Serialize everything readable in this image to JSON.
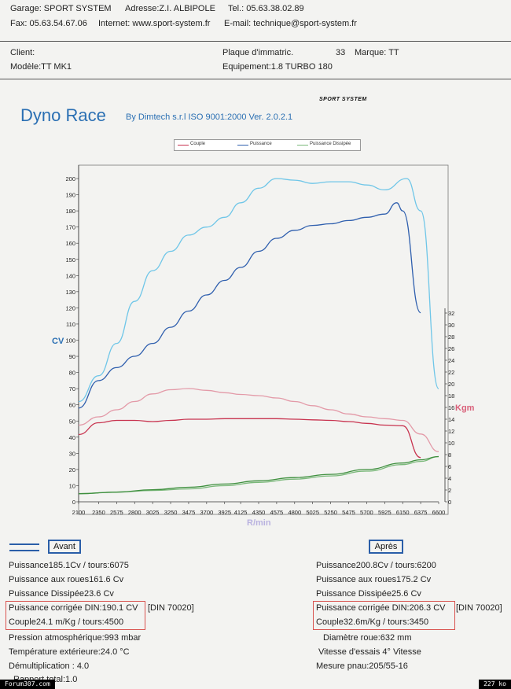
{
  "header": {
    "garage": "Garage: SPORT SYSTEM",
    "adresse": "Adresse:Z.I. ALBIPOLE",
    "tel": "Tel.: 05.63.38.02.89",
    "fax": "Fax: 05.63.54.67.06",
    "internet": "Internet: www.sport-system.fr",
    "email": "E-mail: technique@sport-system.fr",
    "client": "Client:",
    "plaque": "Plaque d'immatric.",
    "plaque_num": "33",
    "marque": "Marque: TT",
    "modele": "Modèle:TT MK1",
    "equipement": "Equipement:1.8 TURBO 180"
  },
  "report": {
    "title": "Dyno Race",
    "subtitle": "By Dimtech s.r.l  ISO 9001:2000  Ver. 2.0.2.1",
    "logo": "SPORT SYSTEM"
  },
  "chart_data": {
    "type": "line",
    "xlabel": "R/min",
    "ylabel_left": "CV",
    "ylabel_right": "Kgm",
    "x_ticks": [
      2100,
      2350,
      2575,
      2800,
      3025,
      3250,
      3475,
      3700,
      3925,
      4125,
      4350,
      4575,
      4800,
      5025,
      5250,
      5475,
      5700,
      5925,
      6150,
      6375,
      6600
    ],
    "y_left_ticks": [
      0,
      10,
      20,
      30,
      40,
      50,
      60,
      70,
      80,
      90,
      100,
      110,
      120,
      130,
      140,
      150,
      160,
      170,
      180,
      190,
      200
    ],
    "y_right_ticks": [
      0,
      2,
      4,
      6,
      8,
      10,
      12,
      14,
      16,
      18,
      20,
      22,
      24,
      26,
      28,
      30,
      32
    ],
    "xlim": [
      2100,
      6600
    ],
    "ylim_left": [
      0,
      200
    ],
    "ylim_right": [
      0,
      32
    ],
    "grid": false,
    "legend": [
      "Couple",
      "Puissance",
      "Puissance Dissipée"
    ],
    "series": [
      {
        "name": "Puissance",
        "axis": "left",
        "color": "#2f5fae",
        "x": [
          2100,
          2350,
          2575,
          2800,
          3025,
          3250,
          3475,
          3700,
          3925,
          4125,
          4350,
          4575,
          4800,
          5025,
          5250,
          5475,
          5700,
          5925,
          6075,
          6150,
          6375
        ],
        "y": [
          58,
          75,
          83,
          90,
          98,
          108,
          118,
          128,
          137,
          145,
          155,
          163,
          168,
          171,
          172,
          174,
          176,
          178,
          185,
          180,
          117
        ]
      },
      {
        "name": "Puissance",
        "axis": "left",
        "color": "#6fc6e8",
        "x": [
          2100,
          2350,
          2575,
          2800,
          3025,
          3250,
          3475,
          3700,
          3925,
          4125,
          4350,
          4575,
          4800,
          5025,
          5250,
          5475,
          5700,
          5925,
          6200,
          6375,
          6600
        ],
        "y": [
          62,
          78,
          98,
          124,
          143,
          155,
          165,
          170,
          176,
          185,
          194,
          200,
          199,
          197,
          198,
          198,
          196,
          193,
          200,
          180,
          70
        ]
      },
      {
        "name": "Couple",
        "axis": "right",
        "color": "#c8334f",
        "x": [
          2100,
          2350,
          2575,
          2800,
          3025,
          3250,
          3475,
          3700,
          3925,
          4125,
          4350,
          4575,
          4800,
          5025,
          5250,
          5475,
          5700,
          5925,
          6150,
          6375
        ],
        "y": [
          11.4,
          13.4,
          13.8,
          13.8,
          13.6,
          13.8,
          14.0,
          14.0,
          14.1,
          14.1,
          14.1,
          14.1,
          14.0,
          13.9,
          13.8,
          13.6,
          13.3,
          13.0,
          12.9,
          7.5
        ]
      },
      {
        "name": "Couple",
        "axis": "right",
        "color": "#e39aa8",
        "x": [
          2100,
          2350,
          2575,
          2800,
          3025,
          3250,
          3475,
          3700,
          3925,
          4125,
          4350,
          4575,
          4800,
          5025,
          5250,
          5475,
          5700,
          5925,
          6150,
          6375,
          6600
        ],
        "y": [
          13.0,
          14.4,
          15.6,
          17.0,
          18.3,
          19.0,
          19.2,
          18.9,
          18.5,
          18.2,
          18.0,
          17.6,
          17.0,
          16.3,
          15.6,
          14.9,
          14.4,
          14.1,
          13.8,
          11.5,
          8.5
        ]
      },
      {
        "name": "Puissance Dissipée",
        "axis": "left",
        "color": "#7ab87a",
        "x": [
          2100,
          2575,
          3025,
          3475,
          3925,
          4350,
          4800,
          5250,
          5700,
          6150,
          6375,
          6600
        ],
        "y": [
          5,
          6,
          7,
          8,
          10,
          12,
          14,
          16,
          19,
          23,
          25,
          28
        ]
      },
      {
        "name": "Puissance Dissipée",
        "axis": "left",
        "color": "#3e8f3e",
        "x": [
          2100,
          2575,
          3025,
          3475,
          3925,
          4350,
          4800,
          5250,
          5700,
          6150,
          6375,
          6600
        ],
        "y": [
          5,
          6,
          7.5,
          9,
          11,
          13,
          15,
          17,
          20,
          24,
          26,
          28
        ]
      }
    ]
  },
  "avant": {
    "label": "Avant",
    "puissance": "Puissance185.1Cv / tours:6075",
    "roues": "Puissance aux roues161.6 Cv",
    "dissipee": "Puissance Dissipée23.6 Cv",
    "corrigee": "Puissance corrigée DIN:190.1 CV",
    "din": "[DIN 70020]",
    "couple": "Couple24.1 m/Kg / tours:4500",
    "pression": "Pression atmosphérique:993 mbar",
    "temperature": "Température extérieure:24.0 °C",
    "demultiplication": "Démultiplication : 4.0",
    "rapport": "Rapport total:1.0"
  },
  "apres": {
    "label": "Après",
    "puissance": "Puissance200.8Cv / tours:6200",
    "roues": "Puissance aux roues175.2 Cv",
    "dissipee": "Puissance Dissipée25.6 Cv",
    "corrigee": "Puissance corrigée DIN:206.3 CV",
    "din": "[DIN 70020]",
    "couple": "Couple32.6m/Kg / tours:3450",
    "diametre": "Diamètre roue:632 mm",
    "vitesse": "Vitesse d'essais 4° Vitesse",
    "mesure": "Mesure pnau:205/55-16"
  },
  "footer": {
    "source": "Forum307.com",
    "size": "227 ko"
  },
  "colors": {
    "avant_line": "#2a5ea8",
    "box_red": "#d9534f",
    "box_blue": "#2a5ea8",
    "title_blue": "#2a6fb3",
    "kgm_pink": "#d9607a",
    "xlabel_lilac": "#b9b2e0"
  }
}
